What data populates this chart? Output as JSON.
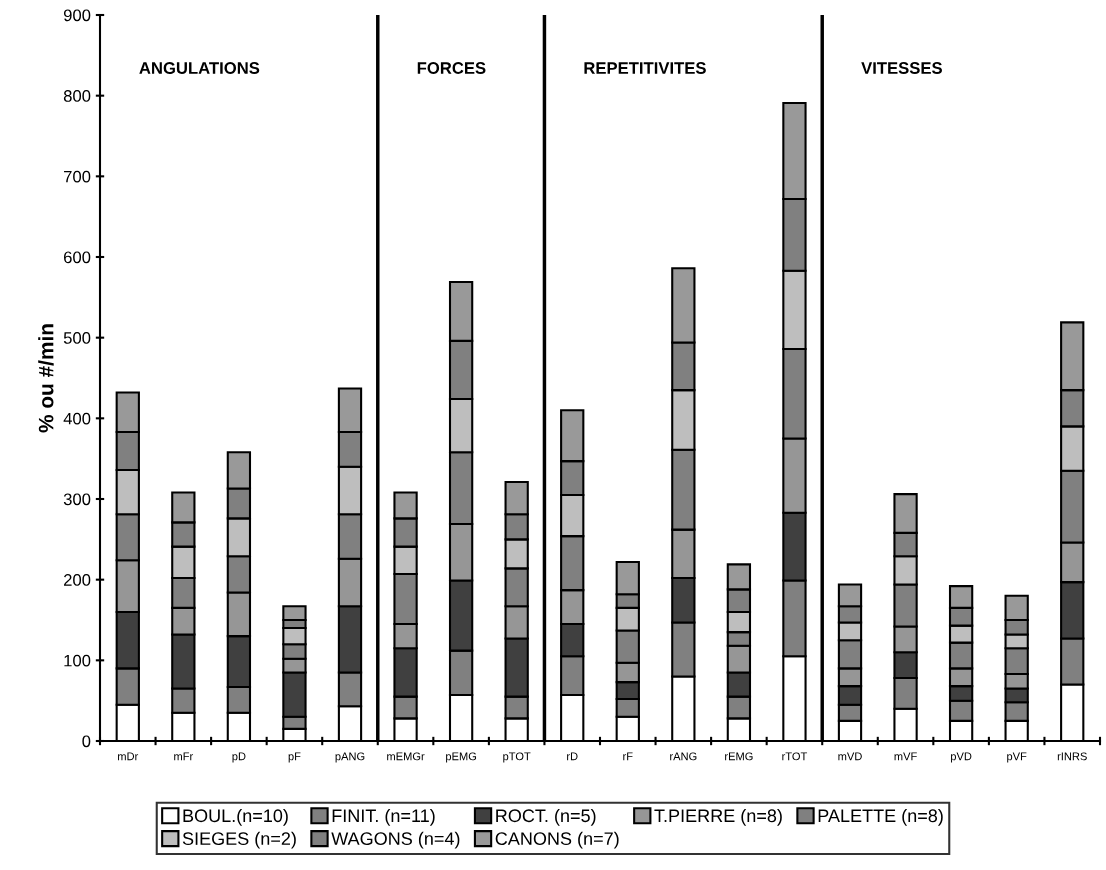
{
  "chart_data": {
    "type": "bar",
    "stacked": true,
    "ylabel": "% ou #/min",
    "categories": [
      "mDr",
      "mFr",
      "pD",
      "pF",
      "pANG",
      "mEMGr",
      "pEMG",
      "pTOT",
      "rD",
      "rF",
      "rANG",
      "rEMG",
      "rTOT",
      "mVD",
      "mVF",
      "pVD",
      "pVF",
      "rINRS"
    ],
    "series": [
      {
        "name": "BOUL.(n=10)",
        "color": "#ffffff",
        "values": [
          45,
          35,
          35,
          15,
          43,
          28,
          57,
          28,
          57,
          30,
          80,
          28,
          105,
          25,
          40,
          25,
          25,
          70
        ]
      },
      {
        "name": "FINIT. (n=11)",
        "color": "#808080",
        "values": [
          45,
          30,
          32,
          15,
          42,
          27,
          55,
          27,
          48,
          22,
          67,
          27,
          94,
          20,
          38,
          25,
          23,
          57
        ]
      },
      {
        "name": "ROCT. (n=5)",
        "color": "#404040",
        "values": [
          70,
          67,
          63,
          55,
          82,
          60,
          87,
          72,
          40,
          21,
          55,
          30,
          84,
          23,
          32,
          18,
          17,
          70
        ]
      },
      {
        "name": "T.PIERRE (n=8)",
        "color": "#969696",
        "values": [
          64,
          33,
          54,
          17,
          59,
          30,
          70,
          40,
          42,
          24,
          60,
          33,
          92,
          22,
          32,
          22,
          18,
          49
        ]
      },
      {
        "name": "PALETTE (n=8)",
        "color": "#808080",
        "values": [
          57,
          37,
          45,
          18,
          55,
          62,
          89,
          47,
          67,
          40,
          99,
          17,
          111,
          35,
          52,
          32,
          32,
          89
        ]
      },
      {
        "name": "SIEGES (n=2)",
        "color": "#bebebe",
        "values": [
          55,
          39,
          47,
          20,
          59,
          34,
          66,
          36,
          51,
          28,
          74,
          25,
          97,
          22,
          35,
          21,
          17,
          55
        ]
      },
      {
        "name": "WAGONS (n=4)",
        "color": "#808080",
        "values": [
          47,
          30,
          37,
          10,
          43,
          35,
          72,
          31,
          42,
          17,
          59,
          28,
          89,
          20,
          29,
          22,
          18,
          45
        ]
      },
      {
        "name": "CANONS (n=7)",
        "color": "#999999",
        "values": [
          49,
          37,
          45,
          17,
          54,
          32,
          73,
          40,
          63,
          40,
          92,
          31,
          119,
          27,
          48,
          27,
          30,
          84
        ]
      }
    ],
    "ylim": [
      0,
      900
    ],
    "yticks": [
      0,
      100,
      200,
      300,
      400,
      500,
      600,
      700,
      800,
      900
    ],
    "annotations": [
      "ANGULATIONS",
      "FORCES",
      "REPETITIVITES",
      "VITESSES"
    ],
    "grid": false,
    "legend": "bottom"
  }
}
